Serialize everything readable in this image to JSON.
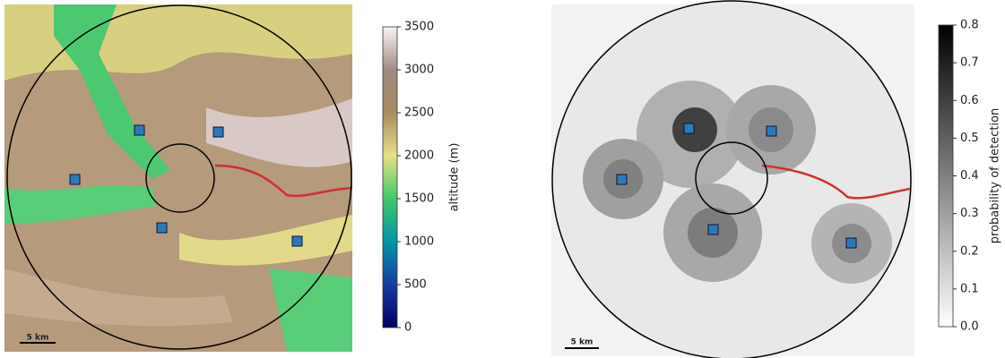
{
  "panels": [
    {
      "scale_bar": "5 km",
      "colorbar": {
        "label": "altitude (m)",
        "range": [
          0,
          3500
        ],
        "ticks": [
          0,
          500,
          1000,
          1500,
          2000,
          2500,
          3000,
          3500
        ],
        "colormap": [
          "#000066",
          "#1a3aa0",
          "#0096a8",
          "#40c868",
          "#e6e088",
          "#a88a62",
          "#a08a82",
          "#fbf4f4"
        ]
      }
    },
    {
      "scale_bar": "5 km",
      "colorbar": {
        "label": "probability of detection",
        "range": [
          0,
          0.8
        ],
        "ticks": [
          {
            "value": 0,
            "label": "0.0"
          },
          0.1,
          0.2,
          0.3,
          0.4,
          0.5,
          0.6,
          0.7,
          0.8
        ],
        "colormap": [
          "#ffffff",
          "#000000"
        ]
      }
    }
  ]
}
